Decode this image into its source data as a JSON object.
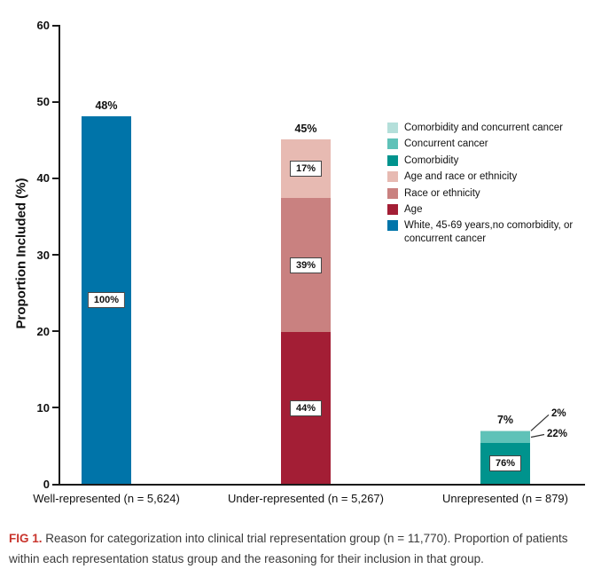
{
  "figure": {
    "caption_label": "FIG 1.",
    "caption_label_color": "#C9342C",
    "caption_text": "Reason for categorization into clinical trial representation group (n = 11,770). Proportion of patients within each representation status group and the reasoning for their inclusion in that group."
  },
  "chart_data": {
    "type": "bar",
    "stacked": true,
    "title": "",
    "xlabel": "",
    "ylabel": "Proportion Included (%)",
    "ylim": [
      0,
      60
    ],
    "yticks": [
      0,
      10,
      20,
      30,
      40,
      50,
      60
    ],
    "grid": false,
    "legend_position": "upper-right",
    "categories": [
      "Well-represented (n = 5,624)",
      "Under-represented (n = 5,267)",
      "Unrepresented (n = 879)"
    ],
    "bars": [
      {
        "category": "Well-represented (n = 5,624)",
        "total_percent": 48,
        "total_label": "48%",
        "segments": [
          {
            "series": "White, 45-69 years,no comorbidity, or concurrent cancer",
            "value": 48,
            "within_group_percent": 100,
            "label": "100%",
            "color": "#0074A9",
            "label_placement": "inside"
          }
        ]
      },
      {
        "category": "Under-represented (n = 5,267)",
        "total_percent": 45,
        "total_label": "45%",
        "segments": [
          {
            "series": "Age",
            "value": 19.8,
            "within_group_percent": 44,
            "label": "44%",
            "color": "#A31E35",
            "label_placement": "inside"
          },
          {
            "series": "Race or ethnicity",
            "value": 17.55,
            "within_group_percent": 39,
            "label": "39%",
            "color": "#C98180",
            "label_placement": "inside"
          },
          {
            "series": "Age and race or ethnicity",
            "value": 7.65,
            "within_group_percent": 17,
            "label": "17%",
            "color": "#E7BAB2",
            "label_placement": "inside"
          }
        ]
      },
      {
        "category": "Unrepresented (n = 879)",
        "total_percent": 7,
        "total_label": "7%",
        "segments": [
          {
            "series": "Comorbidity",
            "value": 5.32,
            "within_group_percent": 76,
            "label": "76%",
            "color": "#00938D",
            "label_placement": "inside"
          },
          {
            "series": "Concurrent cancer",
            "value": 1.54,
            "within_group_percent": 22,
            "label": "22%",
            "color": "#5FC2B8",
            "label_placement": "callout",
            "callout": {
              "dx": 19,
              "dy": -3
            }
          },
          {
            "series": "Comorbidity and concurrent cancer",
            "value": 0.14,
            "within_group_percent": 2,
            "label": "2%",
            "color": "#B4DFDA",
            "label_placement": "callout",
            "callout": {
              "dx": 24,
              "dy": -18
            }
          }
        ]
      }
    ],
    "legend": [
      {
        "label": "Comorbidity and concurrent cancer",
        "color": "#B4DFDA"
      },
      {
        "label": "Concurrent cancer",
        "color": "#5FC2B8"
      },
      {
        "label": "Comorbidity",
        "color": "#00938D"
      },
      {
        "label": "Age and race or ethnicity",
        "color": "#E7BAB2"
      },
      {
        "label": "Race or ethnicity",
        "color": "#C98180"
      },
      {
        "label": "Age",
        "color": "#A31E35"
      },
      {
        "label": "White, 45-69 years,no comorbidity, or concurrent cancer",
        "color": "#0074A9"
      }
    ]
  }
}
